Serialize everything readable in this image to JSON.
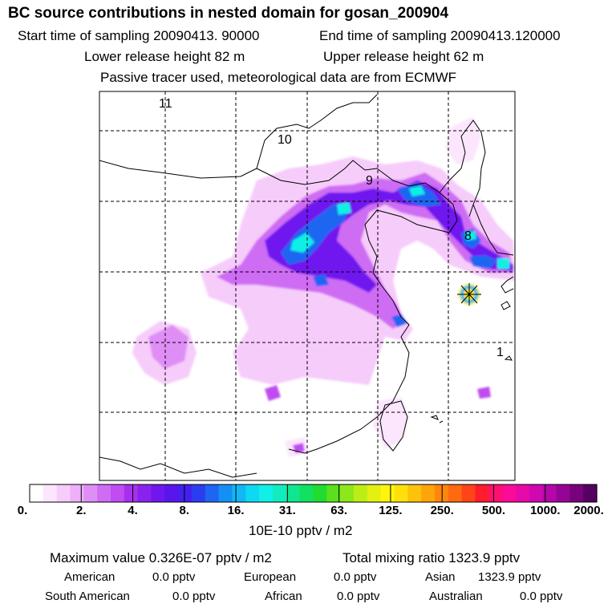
{
  "header": {
    "title": "BC  source contributions in nested domain for gosan_200904",
    "start_time": "Start time of sampling 20090413. 90000",
    "end_time": "End time of sampling 20090413.120000",
    "lower_height": "Lower release height   82 m",
    "upper_height": "Upper release height   62 m",
    "tracer_note": "Passive tracer used, meteorological data are from ECMWF"
  },
  "chart_data": {
    "type": "heatmap",
    "title": "BC  source contributions in nested domain for gosan_200904",
    "trajectory_labels": [
      "11",
      "10",
      "9",
      "8",
      "1"
    ],
    "colorbar": {
      "tick_labels": [
        "0.",
        "2.",
        "4.",
        "8.",
        "16.",
        "31.",
        "63.",
        "125.",
        "250.",
        "500.",
        "1000.",
        "2000."
      ],
      "colors": [
        "#ffffff",
        "#fbe6fd",
        "#f6ccfb",
        "#eeb0f9",
        "#df8ef6",
        "#cf6cf4",
        "#c04cf2",
        "#a730ee",
        "#8a22ee",
        "#7016ee",
        "#5a14ee",
        "#4220ee",
        "#2c3cf0",
        "#1e66f2",
        "#1490f4",
        "#10b8f6",
        "#0fd8f2",
        "#10f0e6",
        "#10ecc0",
        "#10e690",
        "#12e060",
        "#20dc30",
        "#5ae01c",
        "#8ce818",
        "#bcee16",
        "#e4f010",
        "#fff40c",
        "#ffe00a",
        "#ffc20a",
        "#ffa40a",
        "#ff860c",
        "#ff6a10",
        "#ff4418",
        "#ff1c2c",
        "#ff1070",
        "#fa0c98",
        "#e80aa8",
        "#d008b0",
        "#b406aa",
        "#960494",
        "#76027c",
        "#560060"
      ],
      "units": "10E-10 pptv / m2"
    }
  },
  "summary": {
    "max_value": "Maximum value  0.326E-07 pptv / m2",
    "total_mixing": "Total mixing ratio     1323.9 pptv"
  },
  "regions": [
    {
      "name": "American",
      "value": "0.0 pptv"
    },
    {
      "name": "European",
      "value": "0.0 pptv"
    },
    {
      "name": "Asian",
      "value": "1323.9 pptv"
    },
    {
      "name": "South American",
      "value": "0.0 pptv"
    },
    {
      "name": "African",
      "value": "0.0 pptv"
    },
    {
      "name": "Australian",
      "value": "0.0 pptv"
    }
  ]
}
